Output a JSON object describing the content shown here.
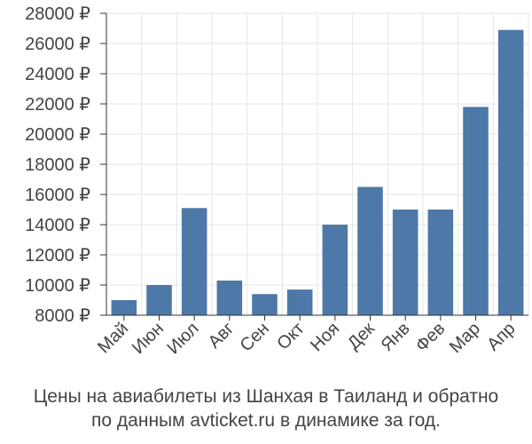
{
  "chart_data": {
    "type": "bar",
    "categories": [
      "Май",
      "Июн",
      "Июл",
      "Авг",
      "Сен",
      "Окт",
      "Ноя",
      "Дек",
      "Янв",
      "Фев",
      "Мар",
      "Апр"
    ],
    "values": [
      9000,
      10000,
      15100,
      10300,
      9400,
      9700,
      14000,
      16500,
      15000,
      15000,
      21800,
      26900
    ],
    "ylim": [
      8000,
      28000
    ],
    "yticks": [
      8000,
      10000,
      12000,
      14000,
      16000,
      18000,
      20000,
      22000,
      24000,
      26000,
      28000
    ],
    "y_unit": "₽",
    "grid": true,
    "bar_color": "#4d78a8",
    "grid_color": "#e6e6e6",
    "title": "",
    "xlabel": "",
    "ylabel": ""
  },
  "caption": {
    "line1": "Цены на авиабилеты из Шанхая в Таиланд и обратно",
    "line2": "по данным avticket.ru в динамике за год."
  }
}
